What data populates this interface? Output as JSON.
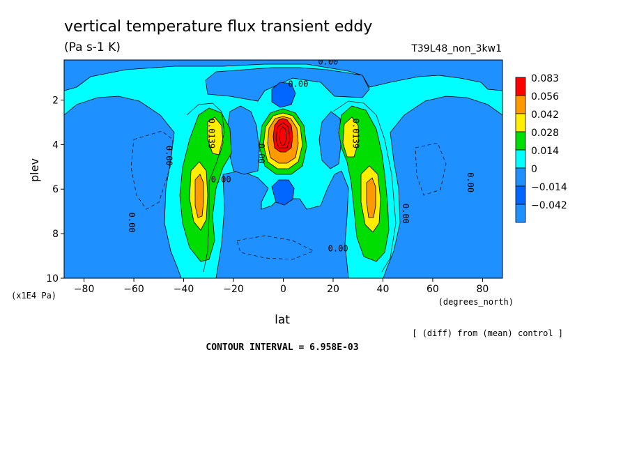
{
  "chart_data": {
    "type": "heatmap",
    "title": "vertical temperature flux transient eddy",
    "units": "(Pa s-1 K)",
    "run_label": "T39L48_non_3kw1",
    "xlabel": "lat",
    "x_units": "(degrees_north)",
    "ylabel": "plev",
    "y_units": "(x1E4 Pa)",
    "footnote": "[ (diff) from (mean) control ]",
    "contour_interval": "CONTOUR INTERVAL = 6.958E-03",
    "xlim": [
      -88,
      88
    ],
    "ylim": [
      10,
      0.2
    ],
    "x_ticks": [
      -80,
      -60,
      -40,
      -20,
      0,
      20,
      40,
      60,
      80
    ],
    "y_ticks": [
      2,
      4,
      6,
      8,
      10
    ],
    "colorbar": {
      "levels": [
        "0.083",
        "0.056",
        "0.042",
        "0.028",
        "0.014",
        "0",
        "−0.014",
        "−0.042"
      ],
      "colors": [
        "#ff0000",
        "#ff9900",
        "#ffee00",
        "#00dd00",
        "#00ffff",
        "#1e90ff",
        "#0066ff",
        "#1e90ff"
      ]
    },
    "contour_labels": [
      {
        "text": "0.00",
        "x": 18,
        "y": 0.4
      },
      {
        "text": "0.00",
        "x": 6,
        "y": 1.4
      },
      {
        "text": "0.0139",
        "x": -30,
        "y": 3.5
      },
      {
        "text": "0.0139",
        "x": 28,
        "y": 3.5
      },
      {
        "text": "0.00",
        "x": -47,
        "y": 4.5
      },
      {
        "text": "0.00",
        "x": -10,
        "y": 4.4
      },
      {
        "text": "0.00",
        "x": -25,
        "y": 5.7
      },
      {
        "text": "0.00",
        "x": -62,
        "y": 7.5
      },
      {
        "text": "0.00",
        "x": 48,
        "y": 7.1
      },
      {
        "text": "0.00",
        "x": 22,
        "y": 8.8
      },
      {
        "text": "0.00",
        "x": 74,
        "y": 5.7
      }
    ],
    "features": [
      {
        "value": 0.083,
        "lat": 0,
        "plev": 3.4,
        "kind": "max"
      },
      {
        "value": 0.035,
        "lat": -34,
        "plev": 6.2,
        "kind": "max"
      },
      {
        "value": 0.035,
        "lat": 36,
        "plev": 6.2,
        "kind": "max"
      },
      {
        "value": 0.028,
        "lat": -30,
        "plev": 3.6,
        "kind": "max"
      },
      {
        "value": 0.028,
        "lat": 30,
        "plev": 3.4,
        "kind": "max"
      },
      {
        "value": -0.02,
        "lat": 0,
        "plev": 1.4,
        "kind": "min"
      },
      {
        "value": -0.02,
        "lat": 0,
        "plev": 6.2,
        "kind": "min"
      }
    ]
  }
}
